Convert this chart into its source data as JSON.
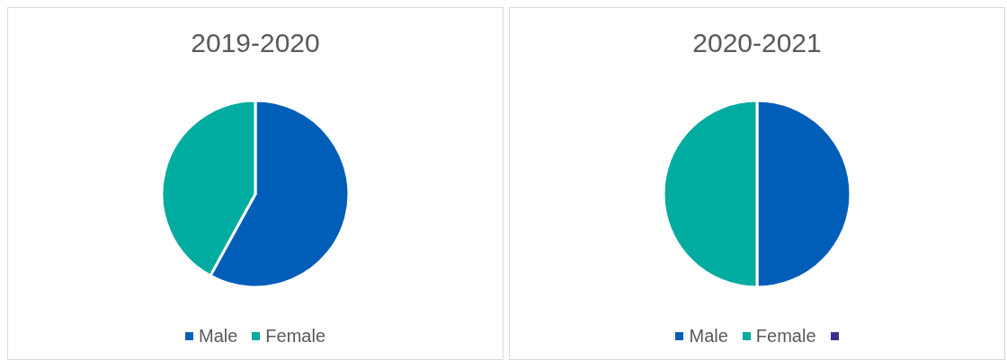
{
  "chart_data": [
    {
      "type": "pie",
      "title": "2019-2020",
      "categories": [
        "Male",
        "Female"
      ],
      "values": [
        58,
        42
      ],
      "colors": [
        "#005eb8",
        "#00ab9f"
      ],
      "legend": "bottom"
    },
    {
      "type": "pie",
      "title": "2020-2021",
      "categories": [
        "Male",
        "Female",
        null
      ],
      "values": [
        50,
        50,
        0
      ],
      "colors": [
        "#005eb8",
        "#00ab9f",
        "#3b2f8f"
      ],
      "legend": "bottom"
    }
  ]
}
